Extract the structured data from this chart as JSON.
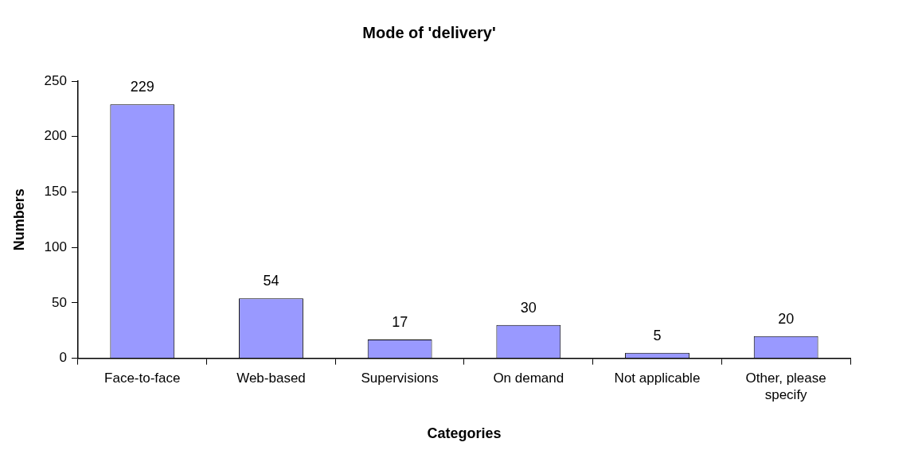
{
  "chart_data": {
    "type": "bar",
    "title": "Mode of 'delivery'",
    "xlabel": "Categories",
    "ylabel": "Numbers",
    "categories": [
      "Face-to-face",
      "Web-based",
      "Supervisions",
      "On demand",
      "Not applicable",
      "Other, please specify"
    ],
    "values": [
      229,
      54,
      17,
      30,
      5,
      20
    ],
    "color": "#9999ff",
    "ylim": [
      0,
      250
    ],
    "yticks": [
      0,
      50,
      100,
      150,
      200,
      250
    ],
    "grid": false,
    "legend": false,
    "data_labels": true
  }
}
